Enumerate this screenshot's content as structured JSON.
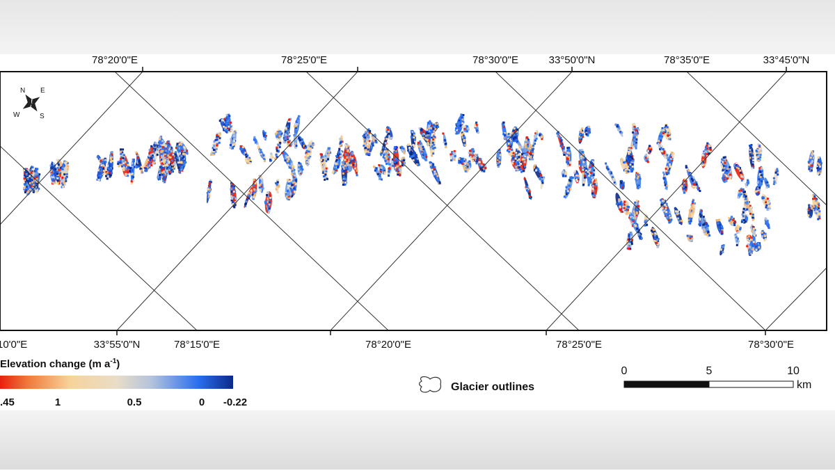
{
  "map": {
    "top_labels": [
      "78°20'0\"E",
      "78°25'0\"E",
      "78°30'0\"E",
      "33°50'0\"N",
      "78°35'0\"E",
      "33°45'0\"N"
    ],
    "bottom_labels": [
      "10'0\"E",
      "33°55'0\"N",
      "78°15'0\"E",
      "78°20'0\"E",
      "78°25'0\"E",
      "78°30'0\"E"
    ],
    "compass": {
      "n": "N",
      "e": "E",
      "s": "S",
      "w": "W"
    }
  },
  "legend": {
    "title": "Elevation change (m a",
    "title_sup": "-1",
    "title_end": ")",
    "colorbar_labels": [
      ".45",
      "1",
      "0.5",
      "0",
      "-0.22"
    ],
    "outline_label": "Glacier outlines"
  },
  "scale_bar": {
    "labels": [
      "0",
      "5",
      "10"
    ],
    "unit": "km"
  }
}
